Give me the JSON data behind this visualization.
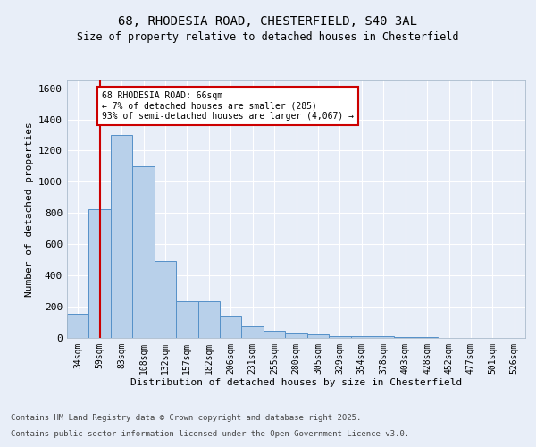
{
  "title1": "68, RHODESIA ROAD, CHESTERFIELD, S40 3AL",
  "title2": "Size of property relative to detached houses in Chesterfield",
  "xlabel": "Distribution of detached houses by size in Chesterfield",
  "ylabel": "Number of detached properties",
  "categories": [
    "34sqm",
    "59sqm",
    "83sqm",
    "108sqm",
    "132sqm",
    "157sqm",
    "182sqm",
    "206sqm",
    "231sqm",
    "255sqm",
    "280sqm",
    "305sqm",
    "329sqm",
    "354sqm",
    "378sqm",
    "403sqm",
    "428sqm",
    "452sqm",
    "477sqm",
    "501sqm",
    "526sqm"
  ],
  "values": [
    150,
    825,
    1300,
    1100,
    490,
    235,
    235,
    135,
    70,
    45,
    25,
    20,
    10,
    10,
    10,
    3,
    3,
    0,
    0,
    0,
    0
  ],
  "bar_color": "#b8d0ea",
  "bar_edge_color": "#5590c8",
  "vline_x": 1,
  "vline_color": "#cc0000",
  "annotation_text": "68 RHODESIA ROAD: 66sqm\n← 7% of detached houses are smaller (285)\n93% of semi-detached houses are larger (4,067) →",
  "annotation_box_color": "#ffffff",
  "annotation_box_edge": "#cc0000",
  "ylim": [
    0,
    1650
  ],
  "yticks": [
    0,
    200,
    400,
    600,
    800,
    1000,
    1200,
    1400,
    1600
  ],
  "footer1": "Contains HM Land Registry data © Crown copyright and database right 2025.",
  "footer2": "Contains public sector information licensed under the Open Government Licence v3.0.",
  "bg_color": "#e8eef8",
  "plot_bg_color": "#e8eef8"
}
